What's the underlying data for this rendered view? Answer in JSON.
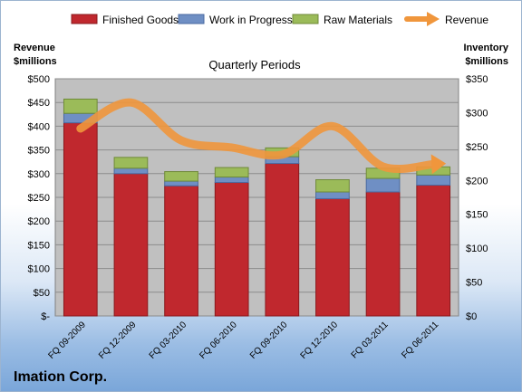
{
  "company": "Imation Corp.",
  "chart_data": {
    "type": "bar",
    "subtitle": "Quarterly Periods",
    "left_axis_title": [
      "Revenue",
      "$millions"
    ],
    "right_axis_title": [
      "Inventory",
      "$millions"
    ],
    "categories": [
      "FQ 09-2009",
      "FQ 12-2009",
      "FQ 03-2010",
      "FQ 06-2010",
      "FQ 09-2010",
      "FQ 12-2010",
      "FQ 03-2011",
      "FQ 06-2011"
    ],
    "stacked": true,
    "series": [
      {
        "name": "Finished Goods",
        "axis": "right",
        "color": "#c0282e",
        "values": [
          285,
          210,
          192,
          197,
          225,
          173,
          183,
          193
        ]
      },
      {
        "name": "Work in Progress",
        "axis": "right",
        "color": "#6f8fc4",
        "values": [
          14,
          8,
          7,
          8,
          10,
          10,
          20,
          15
        ]
      },
      {
        "name": "Raw Materials",
        "axis": "right",
        "color": "#9bbb59",
        "values": [
          21,
          16,
          14,
          14,
          13,
          18,
          15,
          12
        ]
      }
    ],
    "line_series": {
      "name": "Revenue",
      "axis": "left",
      "color": "#f0963c",
      "values": [
        395,
        450,
        370,
        355,
        340,
        400,
        315,
        320
      ]
    },
    "left_axis": {
      "min": 0,
      "max": 500,
      "step": 50,
      "tick_labels": [
        "$-",
        "$50",
        "$100",
        "$150",
        "$200",
        "$250",
        "$300",
        "$350",
        "$400",
        "$450",
        "$500"
      ]
    },
    "right_axis": {
      "min": 0,
      "max": 350,
      "step": 50,
      "tick_labels": [
        "$0",
        "$50",
        "$100",
        "$150",
        "$200",
        "$250",
        "$300",
        "$350"
      ]
    },
    "legend_position": "top",
    "grid": true,
    "plot_background": "#c0c0c0"
  }
}
